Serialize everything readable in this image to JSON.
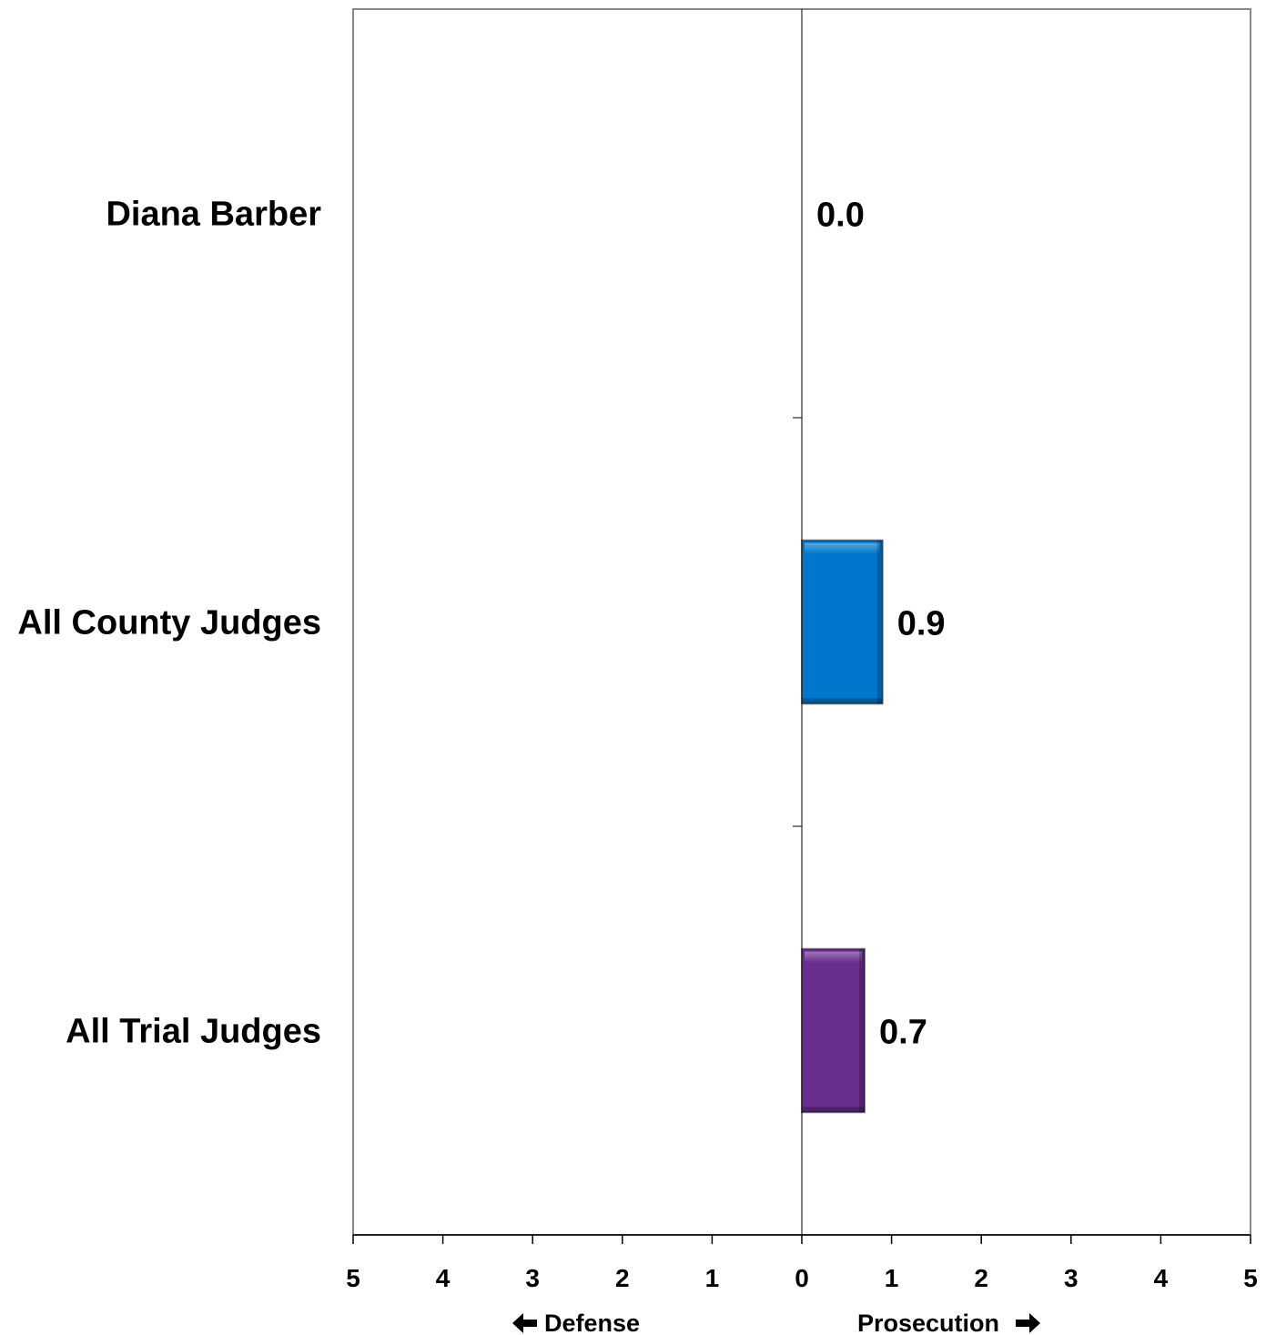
{
  "chart_data": {
    "type": "bar",
    "orientation": "horizontal",
    "categories": [
      "Diana Barber",
      "All County Judges",
      "All Trial Judges"
    ],
    "values": [
      0.0,
      0.9,
      0.7
    ],
    "value_labels": [
      "0.0",
      "0.9",
      "0.7"
    ],
    "bar_colors": [
      "#0077cc",
      "#0077cc",
      "#6a2e90"
    ],
    "xlim": [
      -5,
      5
    ],
    "x_tick_labels": [
      "5",
      "4",
      "3",
      "2",
      "1",
      "0",
      "1",
      "2",
      "3",
      "4",
      "5"
    ],
    "xlabel_left": "Defense",
    "xlabel_right": "Prosecution",
    "grid": false,
    "title": "",
    "legend": "none"
  }
}
